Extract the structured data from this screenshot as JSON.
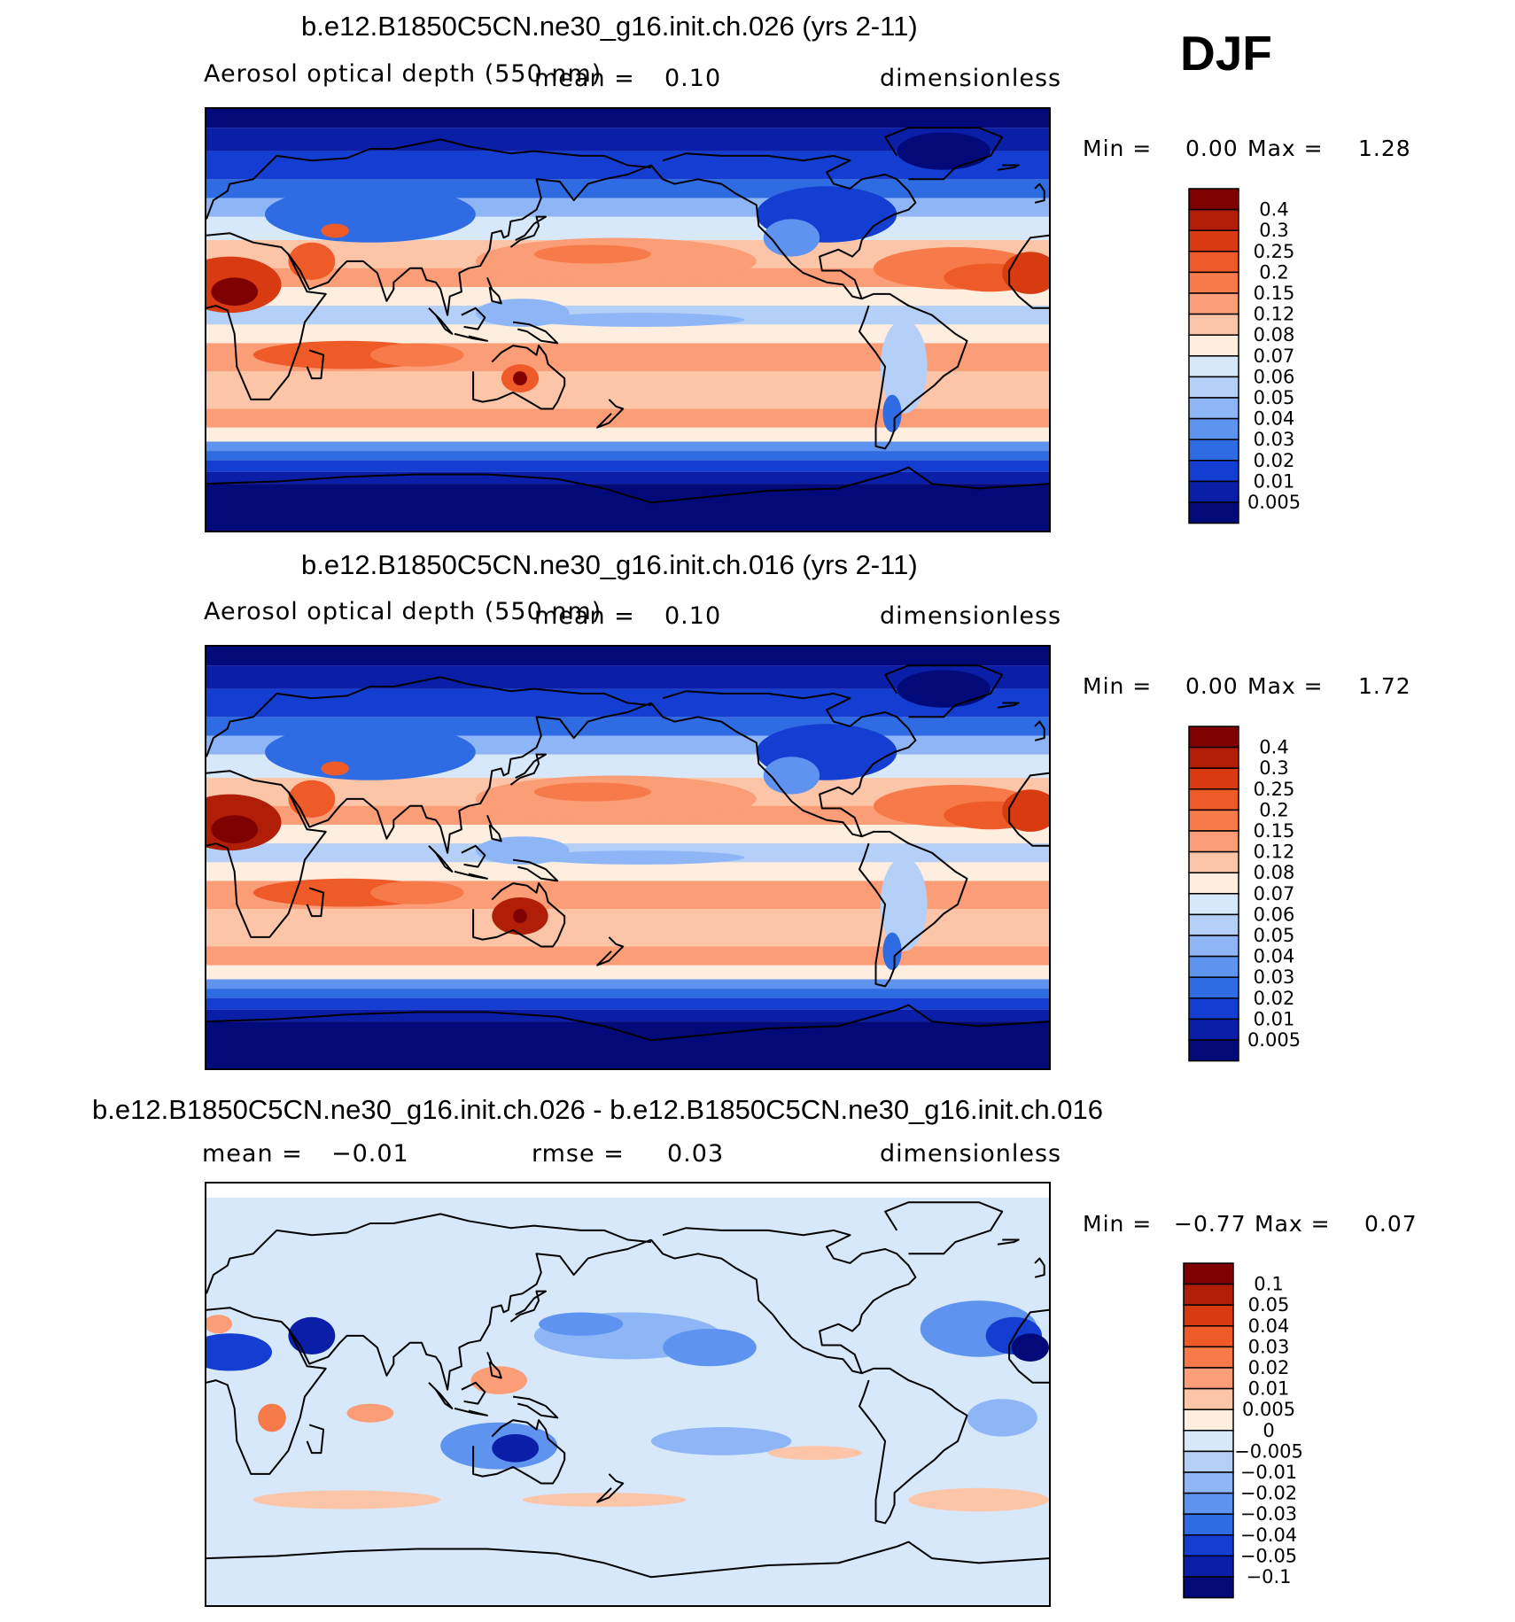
{
  "season": "DJF",
  "panels": [
    {
      "title": "b.e12.B1850C5CN.ne30_g16.init.ch.026 (yrs 2-11)",
      "variable": "Aerosol optical depth (550 nm)",
      "mean_label": "mean =",
      "mean_value": "0.10",
      "units": "dimensionless",
      "min_label": "Min =",
      "min_value": "0.00",
      "max_label": "Max =",
      "max_value": "1.28",
      "colorbar": [
        "0.4",
        "0.3",
        "0.25",
        "0.2",
        "0.15",
        "0.12",
        "0.08",
        "0.07",
        "0.06",
        "0.05",
        "0.04",
        "0.03",
        "0.02",
        "0.01",
        "0.005"
      ],
      "colors": [
        "#7f0000",
        "#b01e08",
        "#d83b12",
        "#ee5a28",
        "#f77b4a",
        "#fb9d77",
        "#fcc5a8",
        "#fdeee0",
        "#d6e8f9",
        "#b4d0f8",
        "#8eb6f6",
        "#5f93f0",
        "#2f6be3",
        "#143ed1",
        "#0a1ea8",
        "#010a78"
      ],
      "map_id": "map-a"
    },
    {
      "title": "b.e12.B1850C5CN.ne30_g16.init.ch.016 (yrs 2-11)",
      "variable": "Aerosol optical depth (550 nm)",
      "mean_label": "mean =",
      "mean_value": "0.10",
      "units": "dimensionless",
      "min_label": "Min =",
      "min_value": "0.00",
      "max_label": "Max =",
      "max_value": "1.72",
      "colorbar": [
        "0.4",
        "0.3",
        "0.25",
        "0.2",
        "0.15",
        "0.12",
        "0.08",
        "0.07",
        "0.06",
        "0.05",
        "0.04",
        "0.03",
        "0.02",
        "0.01",
        "0.005"
      ],
      "colors": [
        "#7f0000",
        "#b01e08",
        "#d83b12",
        "#ee5a28",
        "#f77b4a",
        "#fb9d77",
        "#fcc5a8",
        "#fdeee0",
        "#d6e8f9",
        "#b4d0f8",
        "#8eb6f6",
        "#5f93f0",
        "#2f6be3",
        "#143ed1",
        "#0a1ea8",
        "#010a78"
      ],
      "map_id": "map-b"
    },
    {
      "title": "b.e12.B1850C5CN.ne30_g16.init.ch.026 - b.e12.B1850C5CN.ne30_g16.init.ch.016",
      "mean_label": "mean =",
      "mean_value": "−0.01",
      "rmse_label": "rmse =",
      "rmse_value": "0.03",
      "units": "dimensionless",
      "min_label": "Min =",
      "min_value": "−0.77",
      "max_label": "Max =",
      "max_value": "0.07",
      "colorbar": [
        "0.1",
        "0.05",
        "0.04",
        "0.03",
        "0.02",
        "0.01",
        "0.005",
        "0",
        "−0.005",
        "−0.01",
        "−0.02",
        "−0.03",
        "−0.04",
        "−0.05",
        "−0.1"
      ],
      "colors": [
        "#7f0000",
        "#b01e08",
        "#d83b12",
        "#ee5a28",
        "#f77b4a",
        "#fb9d77",
        "#fcc5a8",
        "#fdeee0",
        "#d6e8f9",
        "#b4d0f8",
        "#8eb6f6",
        "#5f93f0",
        "#2f6be3",
        "#143ed1",
        "#0a1ea8",
        "#010a78"
      ],
      "map_id": "map-c"
    }
  ]
}
